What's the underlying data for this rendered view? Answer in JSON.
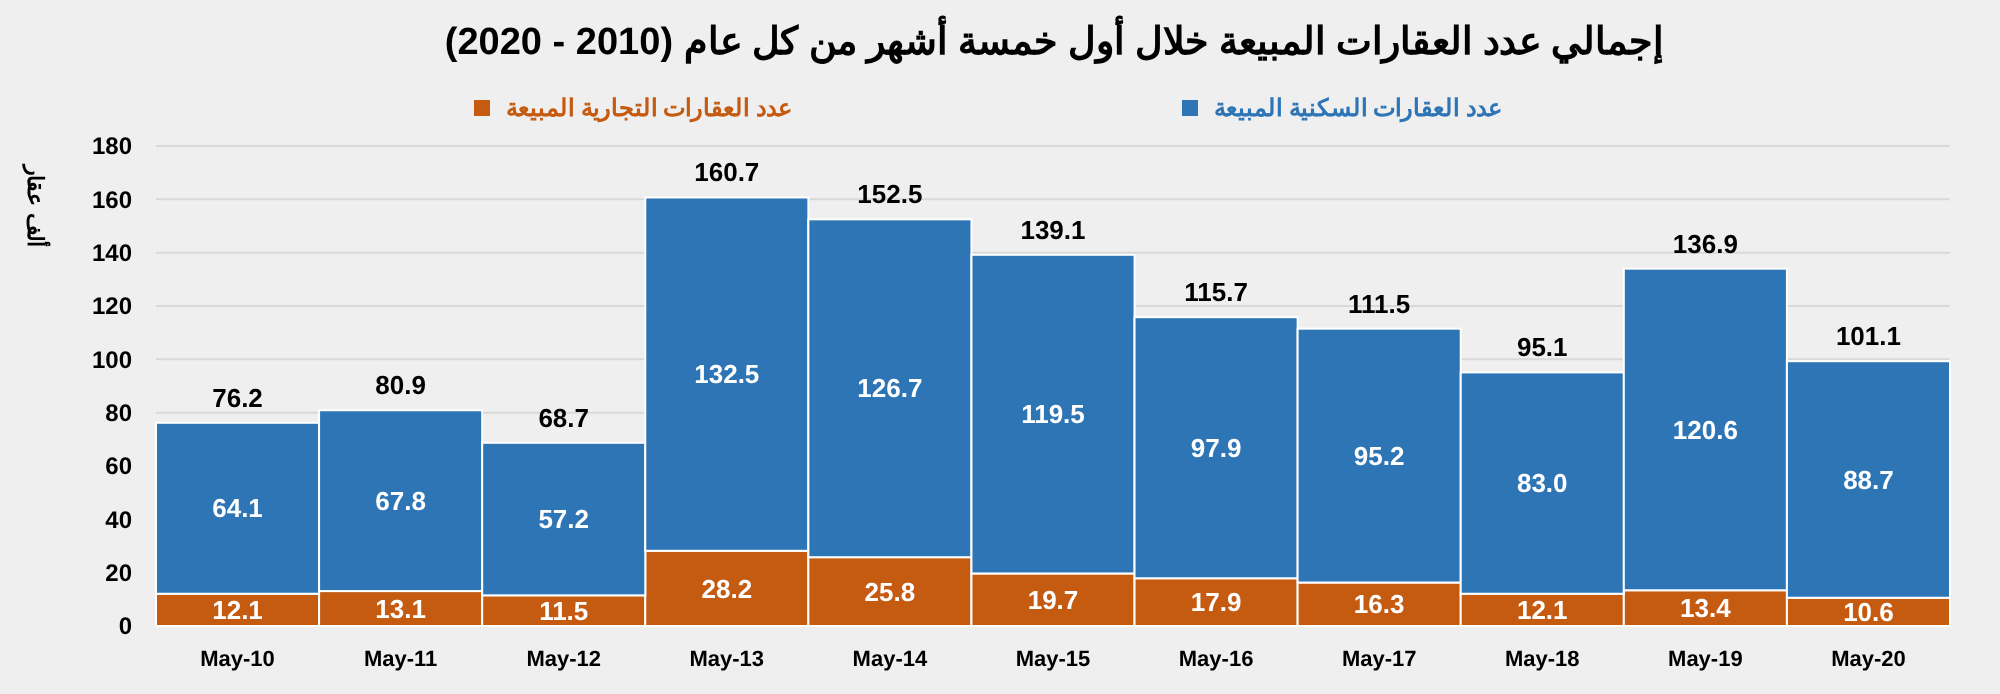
{
  "chart_data": {
    "type": "bar",
    "stacked": true,
    "title": "إجمالي عدد العقارات المبيعة خلال أول خمسة أشهر من كل عام (2010 - 2020)",
    "ylabel": "ألف عقار",
    "categories": [
      "May-10",
      "May-11",
      "May-12",
      "May-13",
      "May-14",
      "May-15",
      "May-16",
      "May-17",
      "May-18",
      "May-19",
      "May-20"
    ],
    "series": [
      {
        "name": "عدد العقارات التجارية المبيعة",
        "color": "#c55a11",
        "values": [
          12.1,
          13.1,
          11.5,
          28.2,
          25.8,
          19.7,
          17.9,
          16.3,
          12.1,
          13.4,
          10.6
        ]
      },
      {
        "name": "عدد العقارات السكنية المبيعة",
        "color": "#2e75b6",
        "values": [
          64.1,
          67.8,
          57.2,
          132.5,
          126.7,
          119.5,
          97.9,
          95.2,
          83.0,
          120.6,
          88.7
        ]
      }
    ],
    "value_labels": [
      [
        "12.1",
        "13.1",
        "11.5",
        "28.2",
        "25.8",
        "19.7",
        "17.9",
        "16.3",
        "12.1",
        "13.4",
        "10.6"
      ],
      [
        "64.1",
        "67.8",
        "57.2",
        "132.5",
        "126.7",
        "119.5",
        "97.9",
        "95.2",
        "83.0",
        "120.6",
        "88.7"
      ]
    ],
    "totals": [
      "76.2",
      "80.9",
      "68.7",
      "160.7",
      "152.5",
      "139.1",
      "115.7",
      "111.5",
      "95.1",
      null,
      null
    ],
    "annotations": [
      {
        "text": "136.9",
        "x": "May-19",
        "y": 134
      },
      {
        "text": "101.1",
        "x": "May-20",
        "y": 99.3
      }
    ],
    "ylim": [
      0,
      180
    ],
    "yticks": [
      0,
      20,
      40,
      60,
      80,
      100,
      120,
      140,
      160,
      180
    ],
    "grid": "y",
    "legend": "top"
  }
}
